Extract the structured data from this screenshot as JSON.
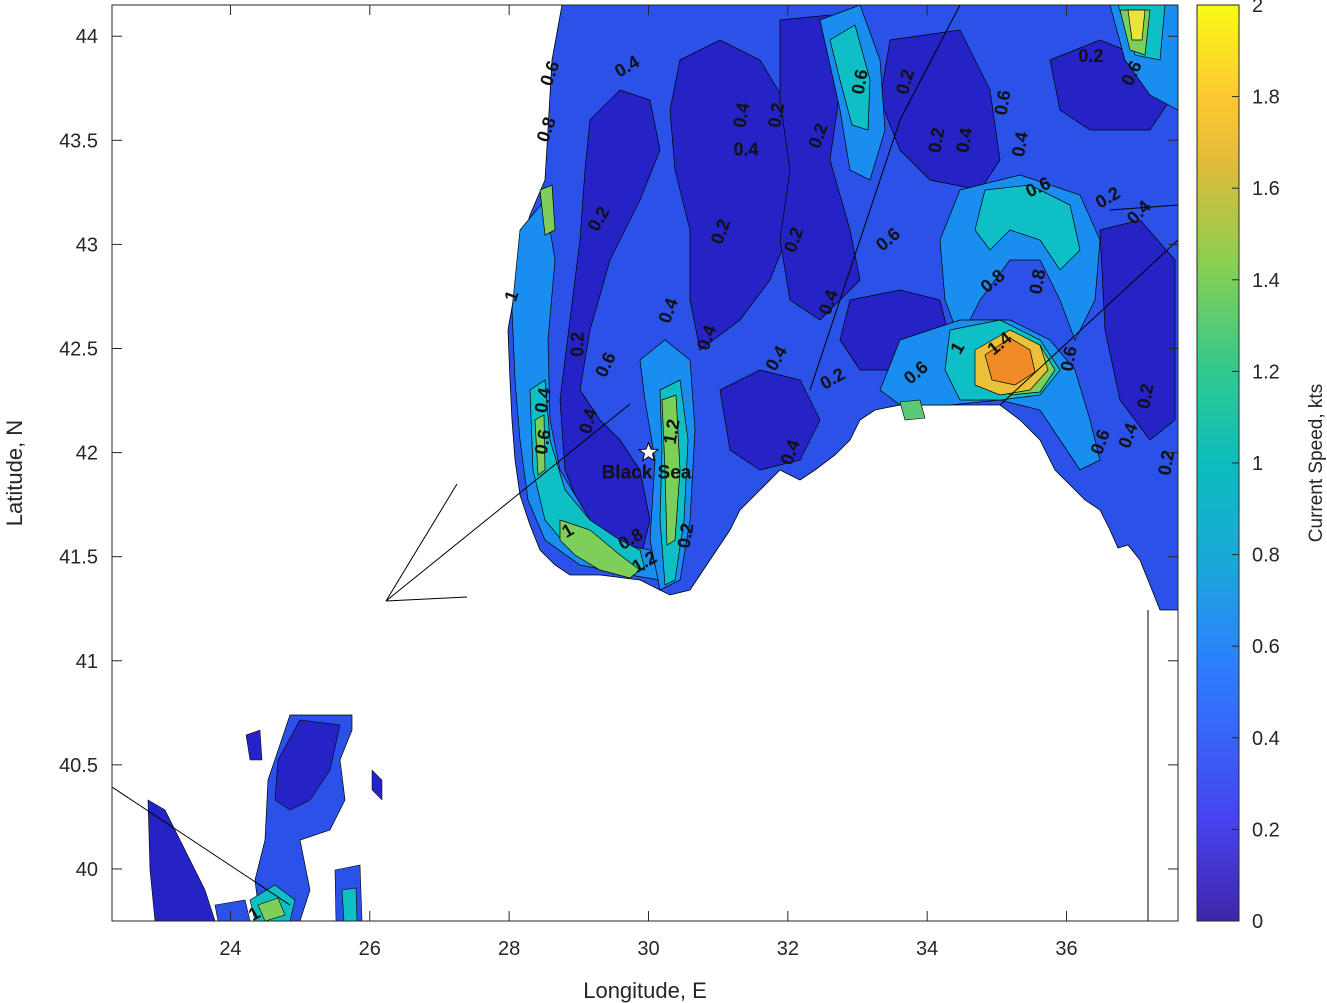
{
  "chart_data": {
    "type": "contour",
    "xlabel": "Longitude, E",
    "ylabel": "Latitude, N",
    "xlim": [
      22.3,
      37.6
    ],
    "ylim": [
      39.75,
      44.15
    ],
    "xticks": [
      24,
      26,
      28,
      30,
      32,
      34,
      36
    ],
    "yticks": [
      40,
      40.5,
      41,
      41.5,
      42,
      42.5,
      43,
      43.5,
      44
    ],
    "colorbar": {
      "label": "Current Speed, kts",
      "range": [
        0,
        2
      ],
      "ticks": [
        0,
        0.2,
        0.4,
        0.6,
        0.8,
        1,
        1.2,
        1.4,
        1.6,
        1.8,
        2
      ],
      "colormap": [
        "#3e26a8",
        "#4743f0",
        "#2c7ffe",
        "#1aa8d9",
        "#0bbdbd",
        "#31c98e",
        "#8bcf4f",
        "#e4bb3a",
        "#fdc932",
        "#f9fb14"
      ]
    },
    "contour_levels": [
      0.2,
      0.4,
      0.6,
      0.8,
      1,
      1.2,
      1.4,
      1.6,
      1.8
    ],
    "annotation": {
      "label": "Black Sea",
      "x": 30.0,
      "y": 42.0,
      "marker": "star"
    },
    "region_labels": [
      {
        "text": "0.4",
        "x": 29.7,
        "y": 43.85,
        "rot": -30
      },
      {
        "text": "0.6",
        "x": 28.6,
        "y": 43.82,
        "rot": -70
      },
      {
        "text": "0.8",
        "x": 28.55,
        "y": 43.55,
        "rot": -70
      },
      {
        "text": "0.2",
        "x": 29.3,
        "y": 43.12,
        "rot": -60
      },
      {
        "text": "0.4",
        "x": 31.35,
        "y": 43.62,
        "rot": -80
      },
      {
        "text": "0.2",
        "x": 31.85,
        "y": 43.62,
        "rot": -80
      },
      {
        "text": "0.4",
        "x": 31.4,
        "y": 43.45,
        "rot": 0
      },
      {
        "text": "0.2",
        "x": 32.45,
        "y": 43.52,
        "rot": -70
      },
      {
        "text": "0.6",
        "x": 33.05,
        "y": 43.78,
        "rot": -80
      },
      {
        "text": "0.2",
        "x": 33.7,
        "y": 43.78,
        "rot": -75
      },
      {
        "text": "0.2",
        "x": 34.15,
        "y": 43.5,
        "rot": -80
      },
      {
        "text": "0.4",
        "x": 34.55,
        "y": 43.5,
        "rot": -80
      },
      {
        "text": "0.6",
        "x": 35.1,
        "y": 43.68,
        "rot": -80
      },
      {
        "text": "0.4",
        "x": 35.35,
        "y": 43.48,
        "rot": -80
      },
      {
        "text": "0.2",
        "x": 36.35,
        "y": 43.9,
        "rot": 0
      },
      {
        "text": "0.6",
        "x": 36.95,
        "y": 43.82,
        "rot": -65
      },
      {
        "text": "0.6",
        "x": 35.6,
        "y": 43.27,
        "rot": -25
      },
      {
        "text": "0.2",
        "x": 36.6,
        "y": 43.22,
        "rot": -30
      },
      {
        "text": "0.4",
        "x": 37.05,
        "y": 43.15,
        "rot": -45
      },
      {
        "text": "0.2",
        "x": 31.05,
        "y": 43.06,
        "rot": -70
      },
      {
        "text": "0.2",
        "x": 32.1,
        "y": 43.02,
        "rot": -70
      },
      {
        "text": "0.6",
        "x": 33.45,
        "y": 43.02,
        "rot": -40
      },
      {
        "text": "0.8",
        "x": 34.95,
        "y": 42.82,
        "rot": -40
      },
      {
        "text": "0.8",
        "x": 35.6,
        "y": 42.82,
        "rot": -80
      },
      {
        "text": "0.4",
        "x": 32.6,
        "y": 42.72,
        "rot": -70
      },
      {
        "text": "1",
        "x": 28.05,
        "y": 42.75,
        "rot": -70
      },
      {
        "text": "0.4",
        "x": 30.3,
        "y": 42.68,
        "rot": -70
      },
      {
        "text": "0.2",
        "x": 29.0,
        "y": 42.52,
        "rot": -90
      },
      {
        "text": "0.6",
        "x": 29.4,
        "y": 42.42,
        "rot": -65
      },
      {
        "text": "0.4",
        "x": 30.85,
        "y": 42.55,
        "rot": -70
      },
      {
        "text": "0.4",
        "x": 31.85,
        "y": 42.45,
        "rot": -60
      },
      {
        "text": "0.2",
        "x": 32.65,
        "y": 42.35,
        "rot": -30
      },
      {
        "text": "0.6",
        "x": 33.85,
        "y": 42.38,
        "rot": -40
      },
      {
        "text": "1",
        "x": 34.45,
        "y": 42.5,
        "rot": -60
      },
      {
        "text": "1.4",
        "x": 35.05,
        "y": 42.52,
        "rot": -40
      },
      {
        "text": "0.4",
        "x": 28.5,
        "y": 42.25,
        "rot": -80
      },
      {
        "text": "0.6",
        "x": 28.5,
        "y": 42.05,
        "rot": -80
      },
      {
        "text": "0.4",
        "x": 29.15,
        "y": 42.15,
        "rot": -75
      },
      {
        "text": "1.2",
        "x": 30.35,
        "y": 42.1,
        "rot": -80
      },
      {
        "text": "0.6",
        "x": 36.05,
        "y": 42.45,
        "rot": -80
      },
      {
        "text": "0.6",
        "x": 36.5,
        "y": 42.05,
        "rot": -70
      },
      {
        "text": "0.4",
        "x": 36.9,
        "y": 42.08,
        "rot": -70
      },
      {
        "text": "0.2",
        "x": 37.15,
        "y": 42.27,
        "rot": -80
      },
      {
        "text": "0.2",
        "x": 37.45,
        "y": 41.95,
        "rot": -80
      },
      {
        "text": "0.4",
        "x": 32.05,
        "y": 42.0,
        "rot": -70
      },
      {
        "text": "1",
        "x": 28.85,
        "y": 41.62,
        "rot": -30
      },
      {
        "text": "0.8",
        "x": 29.75,
        "y": 41.58,
        "rot": -30
      },
      {
        "text": "1.2",
        "x": 29.95,
        "y": 41.47,
        "rot": -30
      },
      {
        "text": "0.2",
        "x": 30.55,
        "y": 41.6,
        "rot": -80
      },
      {
        "text": "1",
        "x": 24.35,
        "y": 39.78,
        "rot": -30
      }
    ]
  }
}
